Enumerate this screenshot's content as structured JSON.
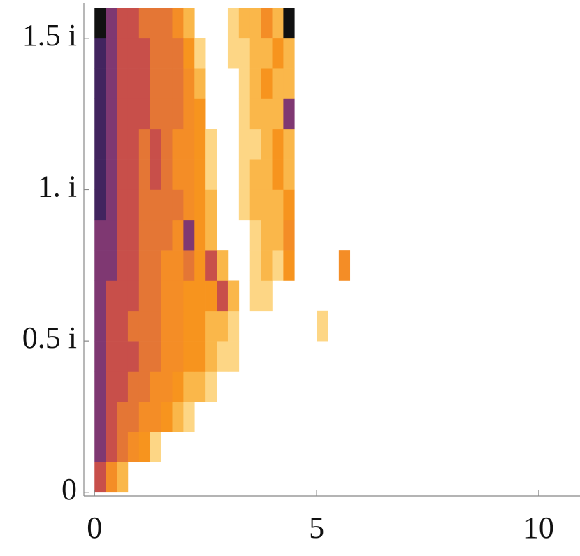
{
  "chart_data": {
    "type": "heatmap2d",
    "xbins": [
      0,
      0.25,
      0.5,
      0.75,
      1,
      1.25,
      1.5,
      1.75,
      2,
      2.25,
      2.5,
      2.75,
      3,
      3.25,
      3.5,
      3.75,
      4,
      4.25,
      4.5,
      4.75,
      5,
      5.25,
      5.5,
      5.75
    ],
    "ybins": [
      0,
      0.1,
      0.2,
      0.3,
      0.4,
      0.5,
      0.6,
      0.7,
      0.8,
      0.9,
      1,
      1.1,
      1.2,
      1.3,
      1.4,
      1.5,
      1.6
    ],
    "z": [
      [
        6,
        4,
        2,
        0,
        0,
        0,
        0,
        0,
        0,
        0,
        0,
        0,
        0,
        0,
        0,
        0,
        0,
        0,
        0,
        0,
        0,
        0,
        0
      ],
      [
        7,
        6,
        5,
        4,
        3,
        1,
        0,
        0,
        0,
        0,
        0,
        0,
        0,
        0,
        0,
        0,
        0,
        0,
        0,
        0,
        0,
        0,
        0
      ],
      [
        7,
        6,
        5,
        5,
        4,
        4,
        3,
        2,
        1,
        0,
        0,
        0,
        0,
        0,
        0,
        0,
        0,
        0,
        0,
        0,
        0,
        0,
        0
      ],
      [
        7,
        6,
        6,
        5,
        5,
        4,
        4,
        3,
        2,
        2,
        1,
        0,
        0,
        0,
        0,
        0,
        0,
        0,
        0,
        0,
        0,
        0,
        0
      ],
      [
        7,
        6,
        6,
        6,
        5,
        5,
        4,
        4,
        3,
        3,
        2,
        1,
        1,
        0,
        0,
        0,
        0,
        0,
        0,
        0,
        0,
        0,
        0
      ],
      [
        7,
        6,
        6,
        5,
        5,
        5,
        4,
        4,
        3,
        3,
        2,
        2,
        1,
        0,
        0,
        0,
        0,
        0,
        0,
        0,
        1,
        0,
        0
      ],
      [
        7,
        6,
        6,
        6,
        5,
        5,
        4,
        4,
        3,
        3,
        3,
        6,
        2,
        0,
        1,
        1,
        0,
        0,
        0,
        0,
        0,
        0,
        0
      ],
      [
        7,
        7,
        6,
        6,
        5,
        5,
        4,
        4,
        5,
        3,
        6,
        2,
        0,
        0,
        1,
        2,
        1,
        3,
        0,
        0,
        0,
        0,
        4
      ],
      [
        7,
        7,
        6,
        6,
        5,
        5,
        5,
        4,
        7,
        3,
        2,
        0,
        0,
        0,
        1,
        2,
        2,
        4,
        0,
        0,
        0,
        0,
        0
      ],
      [
        8,
        7,
        6,
        6,
        5,
        5,
        5,
        5,
        4,
        3,
        2,
        0,
        0,
        1,
        2,
        2,
        2,
        3,
        0,
        0,
        0,
        0,
        0
      ],
      [
        8,
        7,
        6,
        6,
        5,
        6,
        5,
        4,
        4,
        3,
        1,
        0,
        0,
        1,
        2,
        2,
        3,
        2,
        0,
        0,
        0,
        0,
        0
      ],
      [
        8,
        7,
        6,
        6,
        5,
        6,
        5,
        4,
        4,
        3,
        1,
        0,
        0,
        1,
        1,
        2,
        3,
        2,
        0,
        0,
        0,
        0,
        0
      ],
      [
        8,
        7,
        6,
        6,
        6,
        5,
        5,
        5,
        4,
        3,
        0,
        0,
        0,
        1,
        2,
        2,
        2,
        7,
        0,
        0,
        0,
        0,
        0
      ],
      [
        8,
        7,
        6,
        6,
        6,
        5,
        5,
        5,
        4,
        2,
        0,
        0,
        0,
        1,
        2,
        3,
        2,
        2,
        0,
        0,
        0,
        0,
        0
      ],
      [
        8,
        7,
        6,
        6,
        6,
        5,
        5,
        5,
        3,
        1,
        0,
        0,
        1,
        1,
        2,
        2,
        3,
        2,
        0,
        0,
        0,
        0,
        0
      ],
      [
        9,
        7,
        6,
        6,
        5,
        5,
        5,
        4,
        2,
        0,
        0,
        0,
        1,
        2,
        2,
        4,
        2,
        9,
        0,
        0,
        0,
        0,
        0
      ]
    ],
    "colorscale": [
      "#fff3d0",
      "#fcc860",
      "#f7941e",
      "#f28a2a",
      "#c84f4a",
      "#5b2d86",
      "#111111"
    ],
    "xlim": [
      -0.24,
      10.93
    ],
    "ylim": [
      -0.012,
      1.615
    ],
    "xticks": [
      0,
      5,
      10
    ],
    "yticks": [
      {
        "value": 0,
        "label": "0"
      },
      {
        "value": 0.5,
        "label": "0.5 i"
      },
      {
        "value": 1,
        "label": "1. i"
      },
      {
        "value": 1.5,
        "label": "1.5 i"
      }
    ]
  }
}
